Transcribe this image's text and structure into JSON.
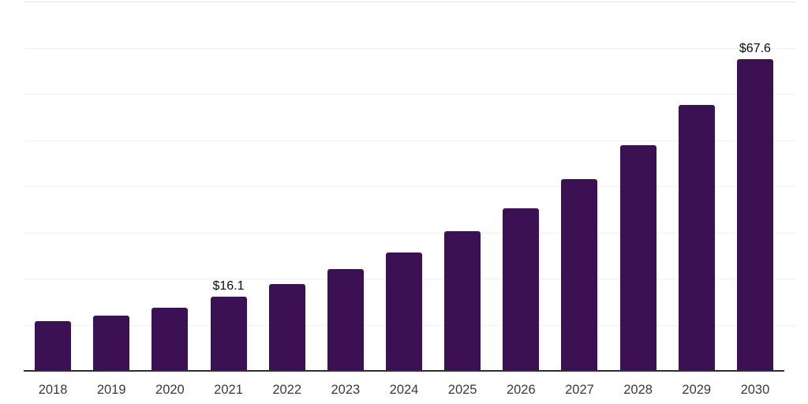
{
  "chart_data": {
    "type": "bar",
    "categories": [
      "2018",
      "2019",
      "2020",
      "2021",
      "2022",
      "2023",
      "2024",
      "2025",
      "2026",
      "2027",
      "2028",
      "2029",
      "2030"
    ],
    "values": [
      10.8,
      12.0,
      13.7,
      16.1,
      18.8,
      22.0,
      25.6,
      30.2,
      35.2,
      41.5,
      48.9,
      57.6,
      67.6
    ],
    "data_labels": [
      {
        "category": "2021",
        "text": "$16.1"
      },
      {
        "category": "2030",
        "text": "$67.6"
      }
    ],
    "ylim": [
      0,
      80
    ],
    "grid_step": 10,
    "grid": "horizontal",
    "y_tick_labels": "none",
    "legend": "none"
  },
  "colors": {
    "background": "#ffffff",
    "bar": "#3b1153",
    "axis_line": "#2e2e2e",
    "gridline": "#f2f2f2",
    "gridline_top": "#e5e5e5",
    "tick_label": "#3a3a3a",
    "data_label": "#0a0a0a"
  }
}
